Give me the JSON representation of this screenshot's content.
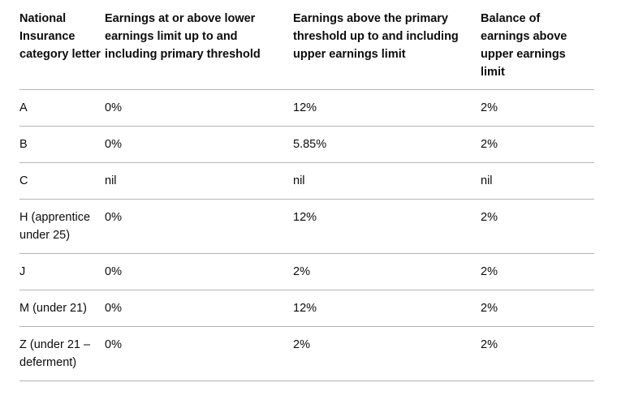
{
  "table": {
    "headers": [
      "National Insurance category letter",
      "Earnings at or above lower earnings limit up to and including primary threshold",
      "Earnings above the primary threshold up to and including upper earnings limit",
      "Balance of earnings above upper earnings limit"
    ],
    "rows": [
      [
        "A",
        "0%",
        "12%",
        "2%"
      ],
      [
        "B",
        "0%",
        "5.85%",
        "2%"
      ],
      [
        "C",
        "nil",
        "nil",
        "nil"
      ],
      [
        "H (apprentice under 25)",
        "0%",
        "12%",
        "2%"
      ],
      [
        "J",
        "0%",
        "2%",
        "2%"
      ],
      [
        "M (under 21)",
        "0%",
        "12%",
        "2%"
      ],
      [
        "Z (under 21 – deferment)",
        "0%",
        "2%",
        "2%"
      ]
    ]
  }
}
